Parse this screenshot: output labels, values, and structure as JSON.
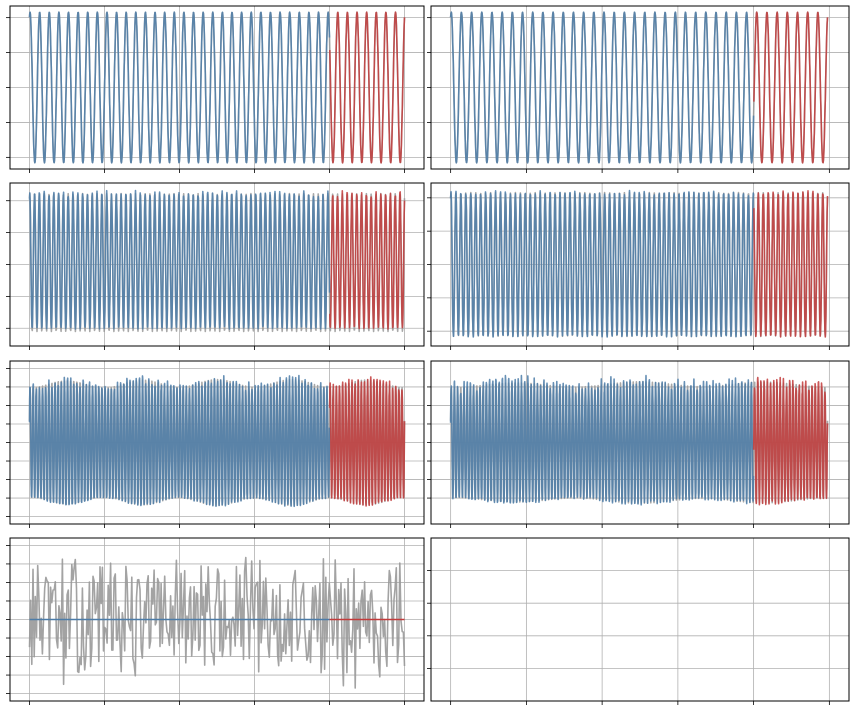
{
  "chart_data": [
    {
      "type": "line",
      "title": "",
      "xlabel": "",
      "ylabel": "",
      "grid": true,
      "legend": "none",
      "xlim": [
        0,
        1
      ],
      "ylim": [
        -1.05,
        1.05
      ],
      "xticks": [
        0,
        0.2,
        0.4,
        0.6,
        0.8,
        1.0
      ],
      "yticks": [
        -0.9,
        -0.45,
        0,
        0.45,
        0.9
      ],
      "split_x": 0.8,
      "series_length": 1.0,
      "signal": {
        "shape": "sine",
        "amplitude": 0.97,
        "cycles": 39,
        "offset": 0
      },
      "fit_noise": 0,
      "series": [
        {
          "role": "target",
          "color": "#999999"
        },
        {
          "role": "fit",
          "color": "#4c7ca8"
        },
        {
          "role": "forecast",
          "color": "#c23b3b"
        }
      ]
    },
    {
      "type": "line",
      "title": "",
      "xlabel": "",
      "ylabel": "",
      "grid": true,
      "legend": "none",
      "xlim": [
        0,
        1
      ],
      "ylim": [
        -1.05,
        1.05
      ],
      "xticks": [
        0,
        0.2,
        0.4,
        0.6,
        0.8,
        1.0
      ],
      "yticks": [
        -0.9,
        -0.45,
        0,
        0.45,
        0.9
      ],
      "split_x": 0.8,
      "series_length": 0.995,
      "signal": {
        "shape": "sine",
        "amplitude": 0.97,
        "cycles": 37,
        "offset": 0
      },
      "fit_noise": 0,
      "series": [
        {
          "role": "target",
          "color": "#999999"
        },
        {
          "role": "fit",
          "color": "#4c7ca8"
        },
        {
          "role": "forecast",
          "color": "#c23b3b"
        }
      ]
    },
    {
      "type": "line",
      "title": "",
      "xlabel": "",
      "ylabel": "",
      "grid": true,
      "legend": "none",
      "xlim": [
        0,
        1
      ],
      "ylim": [
        -1.15,
        1.15
      ],
      "xticks": [
        0,
        0.2,
        0.4,
        0.6,
        0.8,
        1.0
      ],
      "yticks": [
        -0.9,
        -0.45,
        0,
        0.45,
        0.9
      ],
      "split_x": 0.8,
      "series_length": 1.0,
      "signal": {
        "shape": "sine",
        "amplitude": 0.95,
        "cycles": 78,
        "offset": 0.05
      },
      "target_dip": 1.05,
      "fit_noise": 0.03,
      "series": [
        {
          "role": "target",
          "color": "#999999"
        },
        {
          "role": "fit",
          "color": "#4c7ca8"
        },
        {
          "role": "forecast",
          "color": "#c23b3b"
        }
      ]
    },
    {
      "type": "line",
      "title": "",
      "xlabel": "",
      "ylabel": "",
      "grid": true,
      "legend": "none",
      "xlim": [
        0,
        1
      ],
      "ylim": [
        -1.1,
        1.1
      ],
      "xticks": [
        0,
        0.2,
        0.4,
        0.6,
        0.8,
        1.0
      ],
      "yticks": [
        -0.9,
        -0.45,
        0,
        0.45,
        0.9
      ],
      "split_x": 0.8,
      "series_length": 0.995,
      "signal": {
        "shape": "sine",
        "amplitude": 0.97,
        "cycles": 76,
        "offset": 0
      },
      "fit_noise": 0.02,
      "series": [
        {
          "role": "target",
          "color": "#999999"
        },
        {
          "role": "fit",
          "color": "#4c7ca8"
        },
        {
          "role": "forecast",
          "color": "#c23b3b"
        }
      ]
    },
    {
      "type": "line",
      "title": "",
      "xlabel": "",
      "ylabel": "",
      "grid": true,
      "legend": "none",
      "xlim": [
        0,
        1
      ],
      "ylim": [
        -1.1,
        1.1
      ],
      "xticks": [
        0,
        0.2,
        0.4,
        0.6,
        0.8,
        1.0
      ],
      "yticks": [
        -1.0,
        -0.75,
        -0.5,
        -0.25,
        0,
        0.25,
        0.5,
        0.75,
        1.0
      ],
      "split_x": 0.8,
      "series_length": 1.0,
      "signal": {
        "shape": "beat",
        "amplitude": 0.85,
        "cycles": 120,
        "beat_cycles": 5,
        "beat_depth": 0.12,
        "offset": 0
      },
      "fit_noise": 0.05,
      "series": [
        {
          "role": "target",
          "color": "#999999"
        },
        {
          "role": "fit",
          "color": "#4c7ca8"
        },
        {
          "role": "forecast",
          "color": "#c23b3b"
        }
      ]
    },
    {
      "type": "line",
      "title": "",
      "xlabel": "",
      "ylabel": "",
      "grid": true,
      "legend": "none",
      "xlim": [
        0,
        1
      ],
      "ylim": [
        -1.1,
        1.1
      ],
      "xticks": [
        0,
        0.2,
        0.4,
        0.6,
        0.8,
        1.0
      ],
      "yticks": [
        -0.75,
        -0.5,
        -0.25,
        0,
        0.25,
        0.5,
        0.75
      ],
      "split_x": 0.8,
      "series_length": 0.995,
      "signal": {
        "shape": "beat",
        "amplitude": 0.82,
        "cycles": 118,
        "beat_cycles": 3,
        "beat_depth": 0.08,
        "offset": 0
      },
      "fit_noise": 0.08,
      "series": [
        {
          "role": "target",
          "color": "#999999"
        },
        {
          "role": "fit",
          "color": "#4c7ca8"
        },
        {
          "role": "forecast",
          "color": "#c23b3b"
        }
      ]
    },
    {
      "type": "line",
      "title": "",
      "xlabel": "",
      "ylabel": "",
      "grid": true,
      "legend": "none",
      "xlim": [
        0,
        1
      ],
      "ylim": [
        -1.1,
        1.1
      ],
      "xticks": [
        0,
        0.2,
        0.4,
        0.6,
        0.8,
        1.0
      ],
      "yticks": [
        -1.0,
        -0.75,
        -0.5,
        -0.25,
        0,
        0.25,
        0.5,
        0.75,
        1.0
      ],
      "split_x": 0.8,
      "series_length": 1.0,
      "signal": {
        "shape": "noise",
        "amplitude": 0.95,
        "points": 320,
        "offset": 0
      },
      "fit_flat": 0.0,
      "series": [
        {
          "role": "target",
          "color": "#999999"
        },
        {
          "role": "fit",
          "color": "#4c7ca8"
        },
        {
          "role": "forecast",
          "color": "#c23b3b"
        }
      ]
    },
    {
      "type": "line",
      "title": "",
      "xlabel": "",
      "ylabel": "",
      "grid": true,
      "legend": "none",
      "xlim": [
        0,
        1
      ],
      "ylim": [
        0,
        1
      ],
      "xticks": [
        0,
        0.2,
        0.4,
        0.6,
        0.8,
        1.0
      ],
      "yticks": [
        0.2,
        0.4,
        0.6,
        0.8
      ],
      "empty": true,
      "series": []
    }
  ]
}
